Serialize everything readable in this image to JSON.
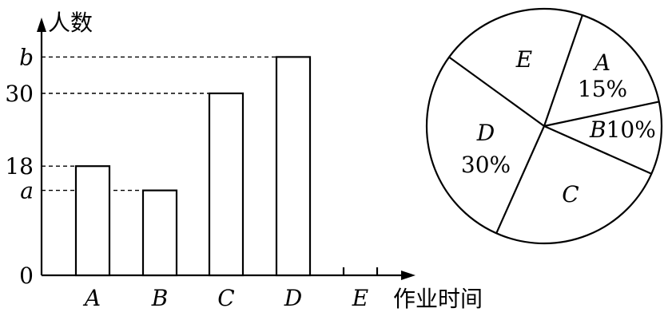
{
  "chart_data": [
    {
      "type": "bar",
      "ylabel": "人数",
      "xlabel": "作业时间",
      "categories": [
        "A",
        "B",
        "C",
        "D",
        "E"
      ],
      "values": [
        18,
        14,
        30,
        36,
        null
      ],
      "value_labels": [
        "18",
        "a",
        "30",
        "b",
        ""
      ],
      "y_ticks": [
        {
          "label": "0",
          "value": 0
        },
        {
          "label": "a",
          "value": 14
        },
        {
          "label": "18",
          "value": 18
        },
        {
          "label": "30",
          "value": 30
        },
        {
          "label": "b",
          "value": 36
        }
      ],
      "ylim": [
        0,
        42
      ],
      "legend": "none"
    },
    {
      "type": "pie",
      "slices": [
        {
          "label": "A",
          "percent_text": "15%",
          "value": 15
        },
        {
          "label": "B",
          "percent_text": "10%",
          "value": 10
        },
        {
          "label": "C",
          "percent_text": "",
          "value": 25
        },
        {
          "label": "D",
          "percent_text": "30%",
          "value": 30
        },
        {
          "label": "E",
          "percent_text": "",
          "value": 20
        }
      ]
    }
  ]
}
